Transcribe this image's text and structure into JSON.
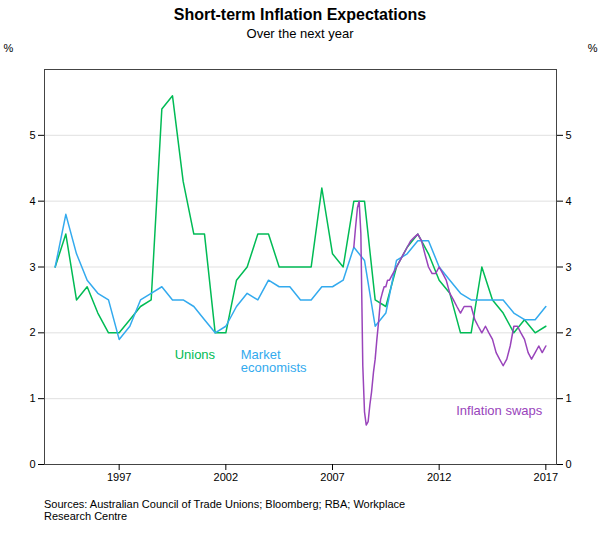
{
  "chart_data": {
    "type": "line",
    "title": "Short-term Inflation Expectations",
    "subtitle": "Over the next year",
    "source": "Sources: Australian Council of Trade Unions; Bloomberg; RBA; Workplace\nResearch Centre",
    "ylabel": "%",
    "y2label": "%",
    "xlim": [
      1993.5,
      2017.5
    ],
    "xticks": [
      1997,
      2002,
      2007,
      2012,
      2017
    ],
    "ylim": [
      0,
      6
    ],
    "yticks": [
      0,
      1,
      2,
      3,
      4,
      5
    ],
    "y2lim": [
      0,
      6
    ],
    "y2ticks": [
      0,
      1,
      2,
      3,
      4,
      5
    ],
    "grid": true,
    "series": [
      {
        "name": "Unions",
        "color": "#00BB55",
        "x": [
          1994.0,
          1994.5,
          1995.0,
          1995.5,
          1996.0,
          1996.5,
          1997.0,
          1997.5,
          1998.0,
          1998.5,
          1999.0,
          1999.5,
          2000.0,
          2000.5,
          2001.0,
          2001.5,
          2002.0,
          2002.5,
          2003.0,
          2003.5,
          2004.0,
          2004.5,
          2005.0,
          2005.5,
          2006.0,
          2006.5,
          2007.0,
          2007.5,
          2008.0,
          2008.5,
          2009.0,
          2009.5,
          2010.0,
          2010.5,
          2011.0,
          2011.5,
          2012.0,
          2012.5,
          2013.0,
          2013.5,
          2014.0,
          2014.5,
          2015.0,
          2015.5,
          2016.0,
          2016.5,
          2017.0
        ],
        "values": [
          3.0,
          3.5,
          2.5,
          2.7,
          2.3,
          2.0,
          2.0,
          2.2,
          2.4,
          2.5,
          5.4,
          5.6,
          4.3,
          3.5,
          3.5,
          2.0,
          2.0,
          2.8,
          3.0,
          3.5,
          3.5,
          3.0,
          3.0,
          3.0,
          3.0,
          4.2,
          3.2,
          3.0,
          4.0,
          4.0,
          2.5,
          2.4,
          3.0,
          3.3,
          3.5,
          3.2,
          2.8,
          2.6,
          2.0,
          2.0,
          3.0,
          2.5,
          2.3,
          2.0,
          2.2,
          2.0,
          2.1
        ]
      },
      {
        "name": "Market\neconomists",
        "color": "#33AAEE",
        "x": [
          1994.0,
          1994.5,
          1995.0,
          1995.5,
          1996.0,
          1996.5,
          1997.0,
          1997.5,
          1998.0,
          1998.5,
          1999.0,
          1999.5,
          2000.0,
          2000.5,
          2001.0,
          2001.5,
          2002.0,
          2002.5,
          2003.0,
          2003.5,
          2004.0,
          2004.5,
          2005.0,
          2005.5,
          2006.0,
          2006.5,
          2007.0,
          2007.5,
          2008.0,
          2008.5,
          2009.0,
          2009.5,
          2010.0,
          2010.5,
          2011.0,
          2011.5,
          2012.0,
          2012.5,
          2013.0,
          2013.5,
          2014.0,
          2014.5,
          2015.0,
          2015.5,
          2016.0,
          2016.5,
          2017.0
        ],
        "values": [
          3.0,
          3.8,
          3.2,
          2.8,
          2.6,
          2.5,
          1.9,
          2.1,
          2.5,
          2.6,
          2.7,
          2.5,
          2.5,
          2.4,
          2.2,
          2.0,
          2.1,
          2.4,
          2.6,
          2.5,
          2.8,
          2.7,
          2.7,
          2.5,
          2.5,
          2.7,
          2.7,
          2.8,
          3.3,
          3.1,
          2.1,
          2.3,
          3.1,
          3.2,
          3.4,
          3.4,
          3.0,
          2.8,
          2.6,
          2.5,
          2.5,
          2.5,
          2.5,
          2.3,
          2.2,
          2.2,
          2.4
        ]
      },
      {
        "name": "Inflation swaps",
        "color": "#9944BB",
        "x": [
          2008.0,
          2008.08,
          2008.17,
          2008.25,
          2008.33,
          2008.42,
          2008.5,
          2008.58,
          2008.67,
          2008.75,
          2008.83,
          2008.92,
          2009.0,
          2009.08,
          2009.17,
          2009.25,
          2009.33,
          2009.42,
          2009.5,
          2009.58,
          2009.67,
          2009.75,
          2009.83,
          2009.92,
          2010.0,
          2010.17,
          2010.33,
          2010.5,
          2010.67,
          2010.83,
          2011.0,
          2011.17,
          2011.33,
          2011.5,
          2011.67,
          2011.83,
          2012.0,
          2012.17,
          2012.33,
          2012.5,
          2012.67,
          2012.83,
          2013.0,
          2013.17,
          2013.33,
          2013.5,
          2013.67,
          2013.83,
          2014.0,
          2014.17,
          2014.33,
          2014.5,
          2014.67,
          2014.83,
          2015.0,
          2015.17,
          2015.33,
          2015.5,
          2015.67,
          2015.83,
          2016.0,
          2016.17,
          2016.33,
          2016.5,
          2016.67,
          2016.83,
          2017.0
        ],
        "values": [
          3.3,
          3.6,
          3.9,
          4.0,
          3.5,
          1.5,
          0.8,
          0.6,
          0.65,
          0.9,
          1.1,
          1.4,
          1.6,
          1.9,
          2.2,
          2.5,
          2.6,
          2.7,
          2.7,
          2.8,
          2.8,
          2.85,
          2.9,
          2.95,
          3.0,
          3.1,
          3.2,
          3.3,
          3.4,
          3.45,
          3.5,
          3.4,
          3.2,
          3.0,
          2.9,
          2.9,
          3.0,
          2.9,
          2.8,
          2.6,
          2.5,
          2.4,
          2.3,
          2.4,
          2.4,
          2.4,
          2.2,
          2.1,
          2.0,
          2.1,
          2.0,
          1.9,
          1.7,
          1.6,
          1.5,
          1.6,
          1.8,
          2.1,
          2.1,
          2.0,
          1.9,
          1.7,
          1.6,
          1.7,
          1.8,
          1.7,
          1.8
        ]
      }
    ],
    "annotations": [
      {
        "text": "Unions",
        "x": 1999.6,
        "y": 1.6,
        "color": "#00BB55"
      },
      {
        "text": "Market\neconomists",
        "x": 2002.7,
        "y": 1.4,
        "color": "#33AAEE"
      },
      {
        "text": "Inflation swaps",
        "x": 2012.8,
        "y": 0.75,
        "color": "#9944BB"
      }
    ]
  }
}
